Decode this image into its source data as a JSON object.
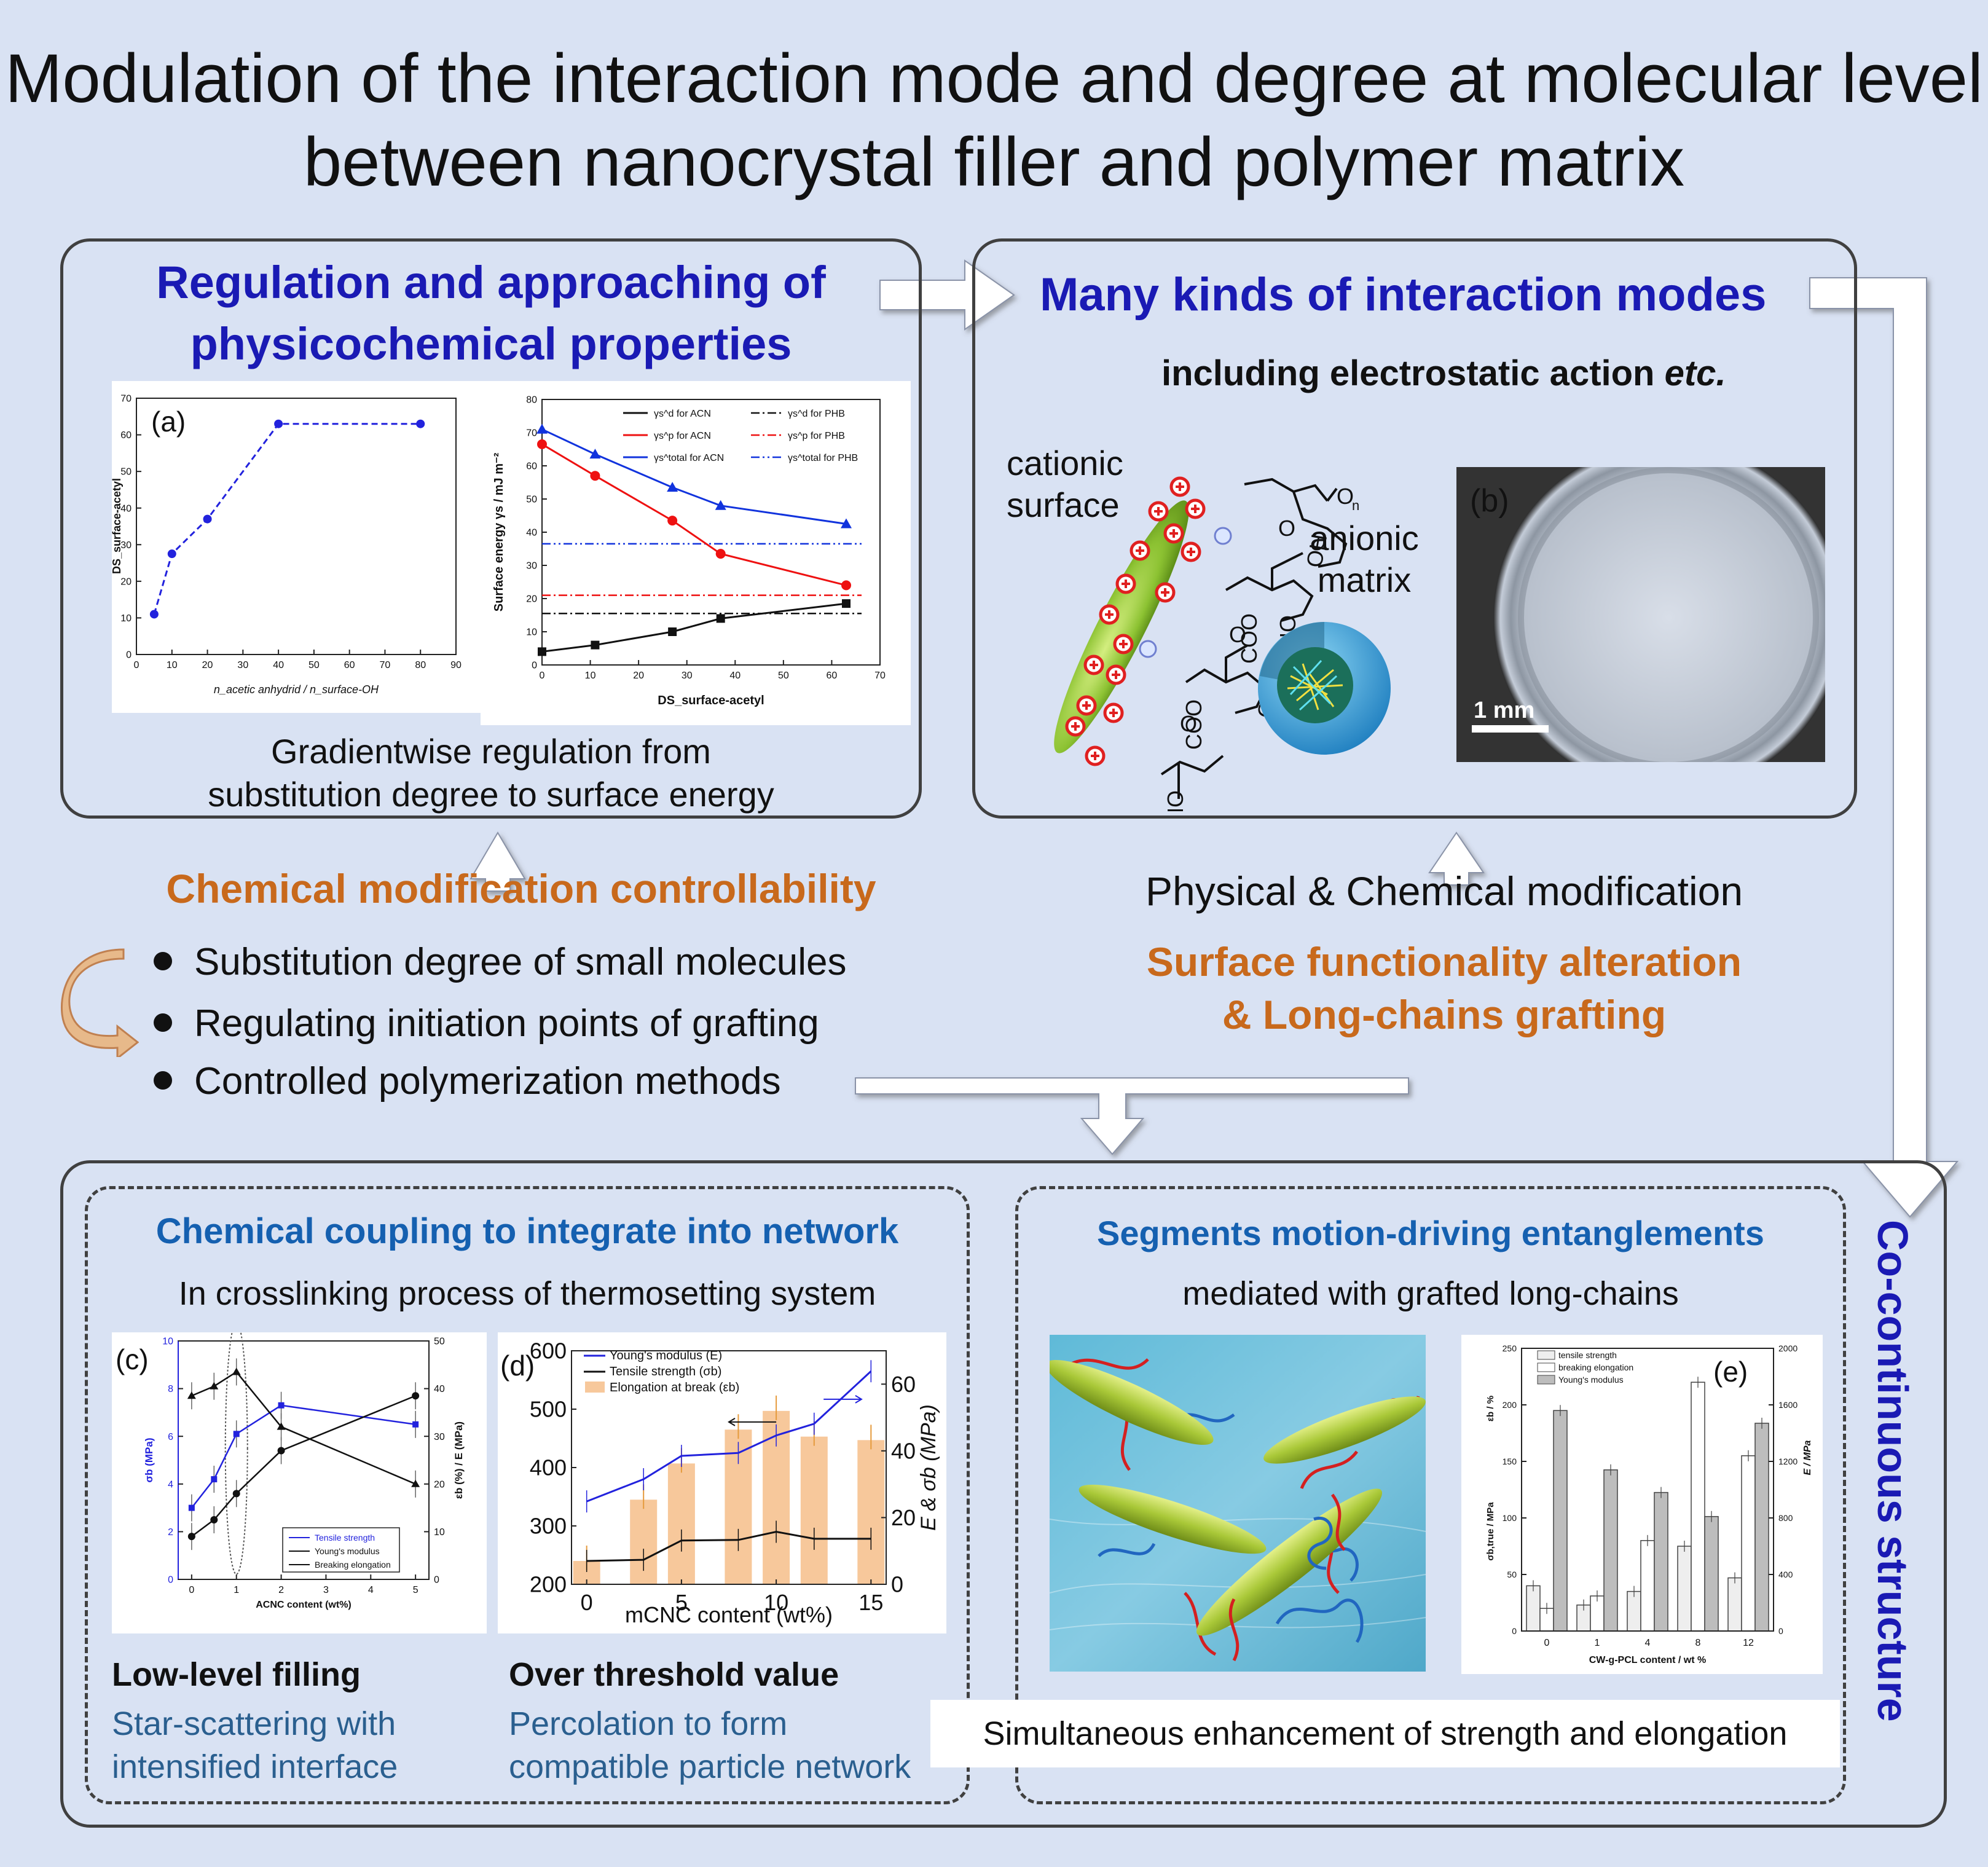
{
  "title": {
    "line1": "Modulation of the interaction mode and degree at molecular level",
    "line2": "between nanocrystal filler and polymer matrix"
  },
  "top_left": {
    "heading_line1": "Regulation and approaching of",
    "heading_line2": "physicochemical properties",
    "caption_line1": "Gradientwise regulation from",
    "caption_line2": "substitution degree to surface energy",
    "panel_a_label": "(a)"
  },
  "top_right": {
    "heading": "Many kinds of interaction modes",
    "subheading_main": "including electrostatic action ",
    "subheading_ital": "etc.",
    "cationic_line1": "cationic",
    "cationic_line2": "surface",
    "anionic_line1": "anionic",
    "anionic_line2": "matrix",
    "chem_labels": {
      "coo": "COO",
      "ho": "HO",
      "oh": "OH",
      "o": "O",
      "n": "n"
    },
    "panel_b_label": "(b)",
    "scale_bar": "1 mm"
  },
  "middle_left": {
    "heading": "Chemical modification controllability",
    "bullets": [
      "Substitution degree of small molecules",
      "Regulating initiation points of grafting",
      "Controlled polymerization methods"
    ]
  },
  "middle_right": {
    "line1": "Physical & Chemical modification",
    "orange_line1": "Surface  functionality alteration",
    "orange_line2": "& Long-chains grafting"
  },
  "bottom": {
    "side_label": "Co-continuous structure",
    "left": {
      "heading": "Chemical coupling to integrate into network",
      "subheading": "In crosslinking process of thermosetting system",
      "label_c": "(c)",
      "label_d": "(d)",
      "low_title": "Low-level filling",
      "low_line1": "Star-scattering with",
      "low_line2": "intensified interface",
      "over_title": "Over threshold value",
      "over_line1": "Percolation to form",
      "over_line2": "compatible particle network"
    },
    "right": {
      "heading": "Segments motion-driving entanglements",
      "subheading": "mediated with grafted long-chains",
      "label_e": "(e)",
      "caption": "Simultaneous enhancement of strength and elongation"
    }
  },
  "colors": {
    "background": "#d9e2f3",
    "blue_heading": "#1a1ab4",
    "orange_heading": "#c8691c",
    "sub_blue": "#1560b0",
    "slate_text": "#2a5f8f"
  },
  "chart_data": [
    {
      "id": "a",
      "type": "line",
      "xlabel": "n_acetic anhydrid / n_surface-OH",
      "ylabel": "DS_surface-acetyl",
      "xlim": [
        0,
        90
      ],
      "ylim": [
        0,
        70
      ],
      "xticks": [
        0,
        10,
        20,
        30,
        40,
        50,
        60,
        70,
        80,
        90
      ],
      "yticks": [
        0,
        10,
        20,
        30,
        40,
        50,
        60,
        70
      ],
      "series": [
        {
          "x": [
            5,
            10,
            20,
            40,
            80
          ],
          "y": [
            11,
            27.5,
            37,
            63,
            63
          ],
          "color": "#2222dd"
        }
      ]
    },
    {
      "id": "a2",
      "type": "line",
      "xlabel": "DS_surface-acetyl",
      "ylabel": "Surface energy γs / mJ m⁻²",
      "xlim": [
        0,
        70
      ],
      "ylim": [
        0,
        80
      ],
      "xticks": [
        0,
        10,
        20,
        30,
        40,
        50,
        60,
        70
      ],
      "yticks": [
        0,
        10,
        20,
        30,
        40,
        50,
        60,
        70,
        80
      ],
      "series": [
        {
          "name": "γs^d for ACN",
          "x": [
            0,
            11,
            27,
            37,
            63
          ],
          "y": [
            4,
            6,
            10,
            14,
            18.5
          ],
          "color": "#111111"
        },
        {
          "name": "γs^p for ACN",
          "x": [
            0,
            11,
            27,
            37,
            63
          ],
          "y": [
            66.5,
            57,
            43.5,
            33.5,
            24
          ],
          "color": "#ee1111"
        },
        {
          "name": "γs^total for ACN",
          "x": [
            0,
            11,
            27,
            37,
            63
          ],
          "y": [
            71,
            63.5,
            53.5,
            48,
            42.5
          ],
          "color": "#1133dd"
        }
      ],
      "hlines": [
        {
          "name": "γs^d for PHB",
          "y": 15.5,
          "color": "#111111"
        },
        {
          "name": "γs^p for PHB",
          "y": 21,
          "color": "#ee1111"
        },
        {
          "name": "γs^total for PHB",
          "y": 36.5,
          "color": "#1133dd"
        }
      ]
    },
    {
      "id": "c",
      "type": "line",
      "xlabel": "ACNC content (wt%)",
      "ylabel": "σb (MPa)",
      "y2label": "εb (%) / E (MPa)",
      "xlim": [
        -0.3,
        5.3
      ],
      "ylim": [
        0,
        10
      ],
      "y2lim": [
        0,
        50
      ],
      "xticks": [
        0,
        1,
        2,
        3,
        4,
        5
      ],
      "yticks": [
        0,
        2,
        4,
        6,
        8,
        10
      ],
      "y2ticks": [
        0,
        10,
        20,
        30,
        40,
        50
      ],
      "series": [
        {
          "name": "Tensile strength",
          "axis": "left",
          "x": [
            0,
            0.5,
            1,
            2,
            5
          ],
          "y": [
            3,
            4.2,
            6.1,
            7.3,
            6.5
          ],
          "color": "#2222dd"
        },
        {
          "name": "Young's modulus",
          "axis": "right",
          "x": [
            0,
            0.5,
            1,
            2,
            5
          ],
          "y": [
            9,
            12.5,
            18,
            27,
            38.5
          ],
          "color": "#111111"
        },
        {
          "name": "Breaking elongation",
          "axis": "right",
          "x": [
            0,
            0.5,
            1,
            2,
            5
          ],
          "y": [
            38.5,
            40.5,
            43.5,
            32,
            20
          ],
          "color": "#111111"
        }
      ]
    },
    {
      "id": "d",
      "type": "bar",
      "xlabel": "mCNC content (wt%)",
      "ylabel": "",
      "y2label": "E & σb (MPa)",
      "xlim": [
        -0.8,
        15.8
      ],
      "ylim": [
        200,
        600
      ],
      "y2lim": [
        0,
        70
      ],
      "xticks": [
        0,
        5,
        10,
        15
      ],
      "yticks": [
        200,
        300,
        400,
        500,
        600
      ],
      "y2ticks": [
        0,
        20,
        40,
        60
      ],
      "bars": {
        "name": "Elongation at break (εb)",
        "x": [
          0,
          3,
          5,
          8,
          10,
          12,
          15
        ],
        "y": [
          240,
          345,
          407,
          465,
          497,
          453,
          447
        ],
        "color": "#f7c89b"
      },
      "series": [
        {
          "name": "Young's modulus (E)",
          "axis": "left",
          "x": [
            0,
            3,
            5,
            8,
            10,
            12,
            15
          ],
          "y": [
            342,
            380,
            420,
            425,
            455,
            475,
            565
          ],
          "color": "#2222dd"
        },
        {
          "name": "Tensile strength (σb)",
          "axis": "left",
          "x": [
            0,
            3,
            5,
            8,
            10,
            12,
            15
          ],
          "y": [
            240,
            242,
            275,
            276,
            290,
            278,
            278
          ],
          "color": "#111111"
        }
      ]
    },
    {
      "id": "e",
      "type": "bar",
      "xlabel": "CW-g-PCL content / wt %",
      "ylabel": "σb,true / MPa",
      "ylabel2": "εb / %",
      "y2label": "E / MPa",
      "categories": [
        "0",
        "1",
        "4",
        "8",
        "12"
      ],
      "ylim": [
        0,
        250
      ],
      "y2lim": [
        0,
        2000
      ],
      "yticks": [
        0,
        50,
        100,
        150,
        200,
        250
      ],
      "y2ticks": [
        0,
        400,
        800,
        1200,
        1600,
        2000
      ],
      "series": [
        {
          "name": "tensile strength",
          "axis": "left",
          "values": [
            40,
            23,
            35,
            75,
            47
          ],
          "color": "#eeeeee"
        },
        {
          "name": "breaking elongation",
          "axis": "left",
          "values": [
            20,
            31,
            80,
            220,
            155
          ],
          "color": "#ffffff"
        },
        {
          "name": "Young's modulus",
          "axis": "right",
          "values": [
            1560,
            1140,
            980,
            810,
            1470
          ],
          "color": "#bdbdbd"
        }
      ]
    }
  ]
}
